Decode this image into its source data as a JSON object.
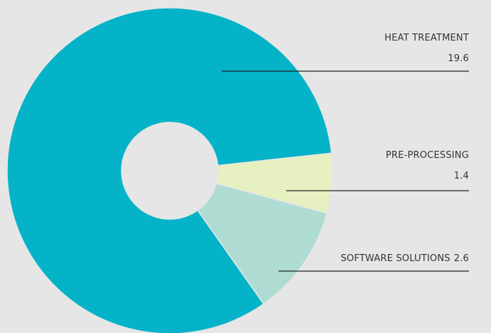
{
  "chart_data": {
    "type": "donut",
    "categories": [
      "HEAT TREATMENT",
      "PRE-PROCESSING",
      "SOFTWARE SOLUTIONS"
    ],
    "values": [
      19.6,
      1.4,
      2.6
    ],
    "colors": [
      "#05b3c8",
      "#e6f0c0",
      "#aedcd3"
    ]
  }
}
